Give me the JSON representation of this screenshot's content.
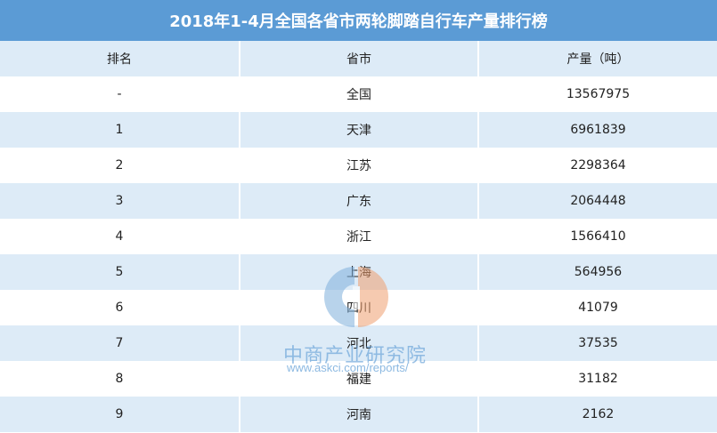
{
  "title": "2018年1-4月全国各省市两轮脚踏自行车产量排行榜",
  "headers": {
    "rank": "排名",
    "province": "省市",
    "output": "产量（吨）"
  },
  "rows": [
    {
      "rank": "-",
      "province": "全国",
      "output": "13567975"
    },
    {
      "rank": "1",
      "province": "天津",
      "output": "6961839"
    },
    {
      "rank": "2",
      "province": "江苏",
      "output": "2298364"
    },
    {
      "rank": "3",
      "province": "广东",
      "output": "2064448"
    },
    {
      "rank": "4",
      "province": "浙江",
      "output": "1566410"
    },
    {
      "rank": "5",
      "province": "上海",
      "output": "564956"
    },
    {
      "rank": "6",
      "province": "四川",
      "output": "41079"
    },
    {
      "rank": "7",
      "province": "河北",
      "output": "37535"
    },
    {
      "rank": "8",
      "province": "福建",
      "output": "31182"
    },
    {
      "rank": "9",
      "province": "河南",
      "output": "2162"
    }
  ],
  "watermark": {
    "name": "中商产业研究院",
    "url": "www.askci.com/reports/"
  },
  "colors": {
    "header_bg": "#5b9bd5",
    "stripe": "#ddebf7",
    "white": "#ffffff"
  }
}
